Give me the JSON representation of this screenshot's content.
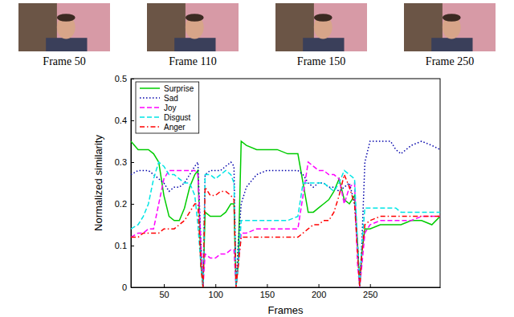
{
  "images": [
    {
      "caption": "Frame 50"
    },
    {
      "caption": "Frame 110"
    },
    {
      "caption": "Frame 150"
    },
    {
      "caption": "Frame 250"
    }
  ],
  "chart_data": {
    "type": "line",
    "x_label": "Frames",
    "y_label": "Normalized similarity",
    "x": [
      18,
      25,
      30,
      35,
      40,
      45,
      50,
      55,
      60,
      65,
      70,
      75,
      80,
      83,
      86,
      88,
      90,
      95,
      100,
      105,
      110,
      115,
      118,
      120,
      122,
      125,
      130,
      140,
      150,
      160,
      170,
      180,
      185,
      190,
      195,
      200,
      205,
      210,
      215,
      220,
      225,
      230,
      235,
      238,
      240,
      242,
      245,
      250,
      260,
      270,
      275,
      280,
      290,
      300,
      310,
      318
    ],
    "series": [
      {
        "name": "Surprise",
        "color": "#00cc00",
        "line_style": "solid",
        "values": [
          0.35,
          0.33,
          0.33,
          0.33,
          0.32,
          0.3,
          0.22,
          0.17,
          0.16,
          0.16,
          0.19,
          0.24,
          0.27,
          0.28,
          0.05,
          0,
          0.18,
          0.17,
          0.17,
          0.17,
          0.18,
          0.2,
          0.2,
          0,
          0.05,
          0.35,
          0.34,
          0.33,
          0.33,
          0.33,
          0.32,
          0.32,
          0.25,
          0.18,
          0.18,
          0.19,
          0.2,
          0.21,
          0.23,
          0.26,
          0.21,
          0.2,
          0.22,
          0.1,
          0,
          0.08,
          0.14,
          0.14,
          0.15,
          0.15,
          0.15,
          0.15,
          0.16,
          0.16,
          0.15,
          0.17
        ]
      },
      {
        "name": "Sad",
        "color": "#0000aa",
        "line_style": "dotted",
        "values": [
          0.27,
          0.28,
          0.28,
          0.28,
          0.27,
          0.26,
          0.25,
          0.23,
          0.24,
          0.24,
          0.25,
          0.27,
          0.29,
          0.3,
          0.1,
          0,
          0.27,
          0.28,
          0.28,
          0.28,
          0.29,
          0.3,
          0.29,
          0,
          0.1,
          0.2,
          0.24,
          0.27,
          0.28,
          0.28,
          0.28,
          0.28,
          0.27,
          0.25,
          0.24,
          0.25,
          0.25,
          0.24,
          0.24,
          0.23,
          0.24,
          0.25,
          0.2,
          0.1,
          0,
          0.1,
          0.3,
          0.35,
          0.35,
          0.35,
          0.33,
          0.32,
          0.34,
          0.35,
          0.34,
          0.33
        ]
      },
      {
        "name": "Joy",
        "color": "#ff00ff",
        "line_style": "dashed",
        "values": [
          0.12,
          0.13,
          0.13,
          0.14,
          0.14,
          0.2,
          0.26,
          0.28,
          0.28,
          0.28,
          0.28,
          0.28,
          0.28,
          0.27,
          0.1,
          0,
          0.08,
          0.07,
          0.07,
          0.08,
          0.08,
          0.09,
          0.09,
          0,
          0.05,
          0.13,
          0.13,
          0.14,
          0.14,
          0.14,
          0.14,
          0.14,
          0.22,
          0.3,
          0.29,
          0.28,
          0.28,
          0.27,
          0.27,
          0.26,
          0.2,
          0.24,
          0.25,
          0.05,
          0,
          0.05,
          0.13,
          0.15,
          0.16,
          0.16,
          0.16,
          0.16,
          0.16,
          0.17,
          0.17,
          0.17
        ]
      },
      {
        "name": "Disgust",
        "color": "#00e5e5",
        "line_style": "dashed",
        "values": [
          0.14,
          0.15,
          0.17,
          0.2,
          0.26,
          0.3,
          0.29,
          0.27,
          0.27,
          0.26,
          0.25,
          0.25,
          0.22,
          0.15,
          0.05,
          0,
          0.27,
          0.27,
          0.26,
          0.27,
          0.28,
          0.27,
          0.25,
          0,
          0.05,
          0.16,
          0.16,
          0.16,
          0.16,
          0.16,
          0.16,
          0.17,
          0.25,
          0.25,
          0.25,
          0.25,
          0.25,
          0.24,
          0.23,
          0.25,
          0.28,
          0.27,
          0.26,
          0.1,
          0,
          0.1,
          0.19,
          0.19,
          0.19,
          0.19,
          0.19,
          0.18,
          0.18,
          0.18,
          0.18,
          0.18
        ]
      },
      {
        "name": "Anger",
        "color": "#ff0000",
        "line_style": "dashdot",
        "values": [
          0.12,
          0.12,
          0.13,
          0.13,
          0.13,
          0.13,
          0.14,
          0.14,
          0.14,
          0.15,
          0.16,
          0.18,
          0.2,
          0.2,
          0.05,
          0,
          0.24,
          0.22,
          0.22,
          0.23,
          0.23,
          0.22,
          0.21,
          0,
          0.05,
          0.12,
          0.12,
          0.12,
          0.12,
          0.12,
          0.12,
          0.12,
          0.13,
          0.14,
          0.15,
          0.15,
          0.16,
          0.16,
          0.18,
          0.22,
          0.27,
          0.24,
          0.2,
          0.08,
          0,
          0.08,
          0.15,
          0.16,
          0.17,
          0.17,
          0.17,
          0.17,
          0.17,
          0.17,
          0.17,
          0.17
        ]
      }
    ],
    "xlim": [
      18,
      318
    ],
    "xticks": [
      50,
      100,
      150,
      200,
      250
    ],
    "ylim": [
      0,
      0.5
    ],
    "yticks": [
      0,
      0.1,
      0.2,
      0.3,
      0.4,
      0.5
    ],
    "legend": "upper left"
  }
}
